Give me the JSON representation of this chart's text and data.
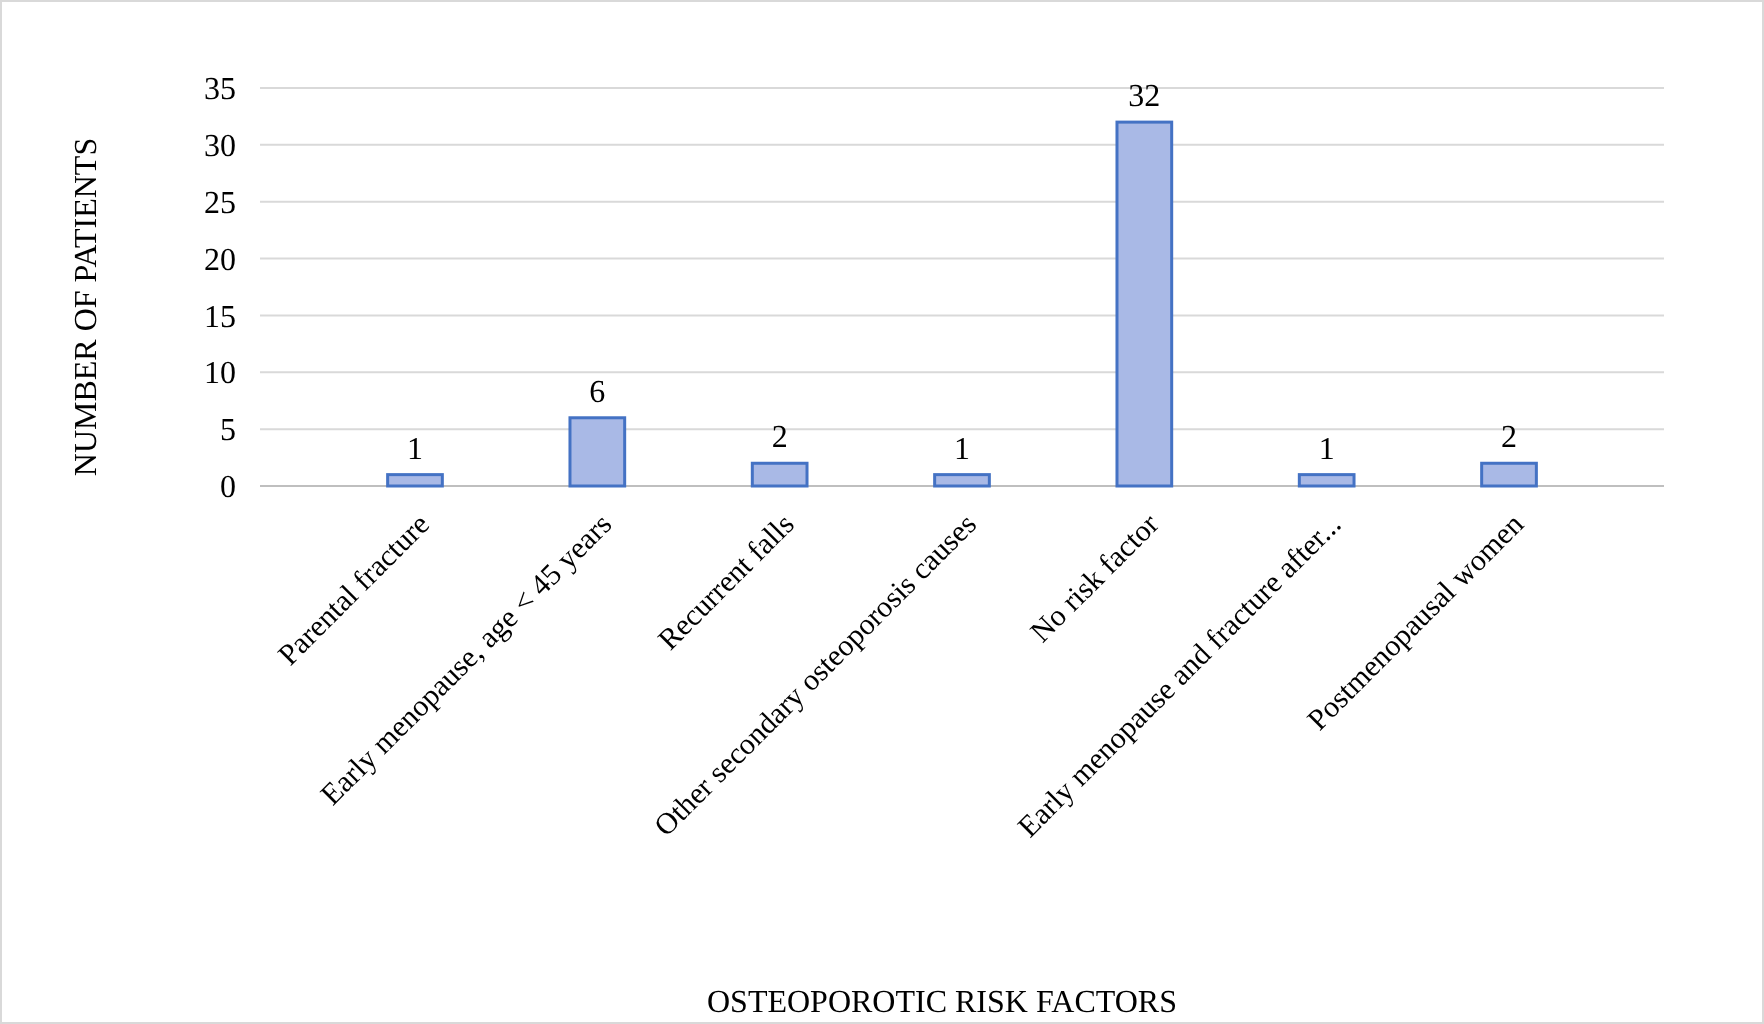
{
  "chart_data": {
    "type": "bar",
    "xlabel": "OSTEOPOROTIC RISK FACTORS",
    "ylabel": "NUMBER OF PATIENTS",
    "categories": [
      "Parental fracture",
      "Early menopause, age < 45 years",
      "Recurrent falls",
      "Other secondary osteoporosis causes",
      "No risk factor",
      "Early menopause and fracture after...",
      "Postmenopausal women"
    ],
    "values": [
      1,
      6,
      2,
      1,
      32,
      1,
      2
    ],
    "color": "#a9b9e6",
    "ylim": [
      0,
      35
    ],
    "yticks": [
      0,
      5,
      10,
      15,
      20,
      25,
      30,
      35
    ],
    "grid": "y",
    "data_labels": true
  }
}
